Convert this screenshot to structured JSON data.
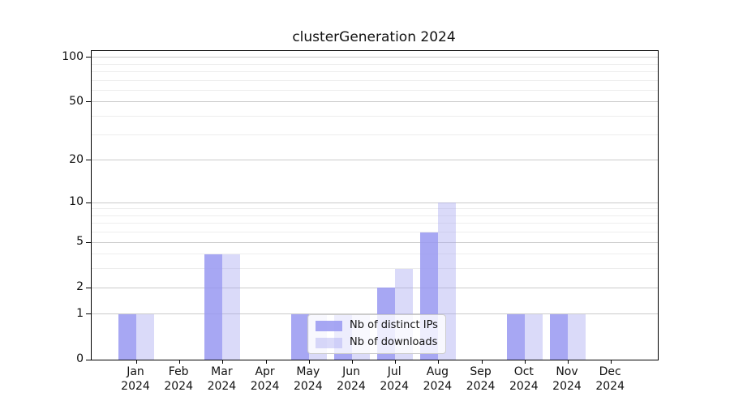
{
  "title": "clusterGeneration 2024",
  "chart_data": {
    "type": "bar",
    "title": "clusterGeneration 2024",
    "categories": [
      "Jan 2024",
      "Feb 2024",
      "Mar 2024",
      "Apr 2024",
      "May 2024",
      "Jun 2024",
      "Jul 2024",
      "Aug 2024",
      "Sep 2024",
      "Oct 2024",
      "Nov 2024",
      "Dec 2024"
    ],
    "series": [
      {
        "name": "Nb of distinct IPs",
        "color": "#9898f1",
        "alpha": 0.85,
        "values": [
          1,
          0,
          4,
          0,
          1,
          1,
          2,
          6,
          0,
          1,
          1,
          0
        ]
      },
      {
        "name": "Nb of downloads",
        "color": "#9f9ff0",
        "alpha": 0.38,
        "values": [
          1,
          0,
          4,
          0,
          1,
          1,
          3,
          10,
          0,
          1,
          1,
          0
        ]
      }
    ],
    "yscale": "log1p",
    "ylim": [
      0,
      110
    ],
    "yticks": [
      0,
      1,
      2,
      5,
      10,
      20,
      50,
      100
    ],
    "minor_yticks": [
      3,
      4,
      6,
      7,
      8,
      9,
      30,
      40,
      60,
      70,
      80,
      90
    ],
    "grid": "on",
    "legend_position": "lower center",
    "xlabel": "",
    "ylabel": ""
  }
}
